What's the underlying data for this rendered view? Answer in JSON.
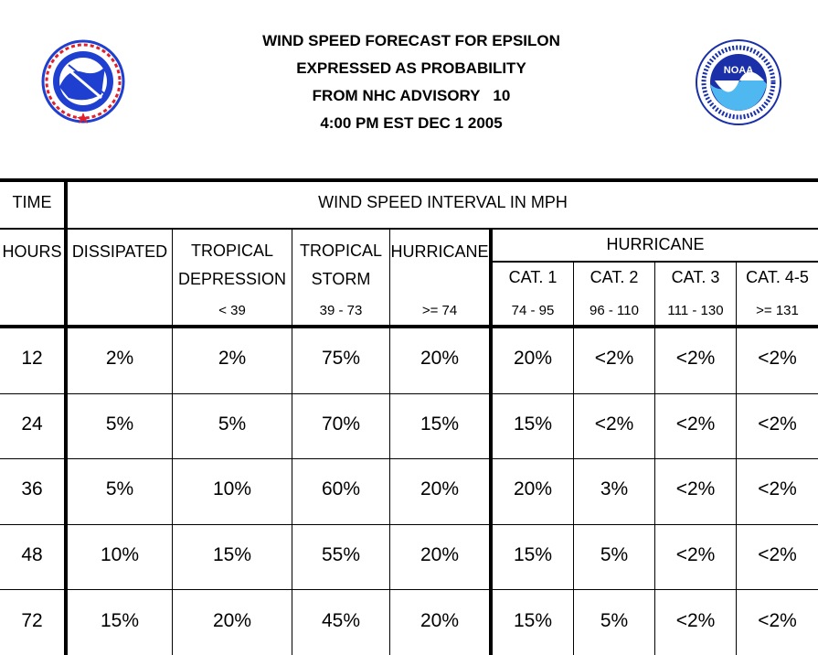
{
  "header": {
    "title_lines": [
      "WIND SPEED FORECAST FOR EPSILON",
      "EXPRESSED AS PROBABILITY",
      "FROM NHC ADVISORY   10",
      "4:00 PM EST DEC 1 2005"
    ],
    "left_logo": "national-weather-service-logo",
    "right_logo": "noaa-logo"
  },
  "table": {
    "time_label": "TIME",
    "interval_title": "WIND SPEED INTERVAL IN MPH",
    "hours_label": "HOURS",
    "columns": {
      "dissipated": {
        "label": "DISSIPATED",
        "range": ""
      },
      "td": {
        "label1": "TROPICAL",
        "label2": "DEPRESSION",
        "range": "< 39"
      },
      "ts": {
        "label1": "TROPICAL",
        "label2": "STORM",
        "range": "39 - 73"
      },
      "hu": {
        "label": "HURRICANE",
        "range": ">= 74"
      },
      "hurricane_group": "HURRICANE",
      "cat1": {
        "label": "CAT. 1",
        "range": "74 - 95"
      },
      "cat2": {
        "label": "CAT. 2",
        "range": "96 - 110"
      },
      "cat3": {
        "label": "CAT. 3",
        "range": "111 - 130"
      },
      "cat45": {
        "label": "CAT. 4-5",
        "range": ">= 131"
      }
    },
    "rows": [
      {
        "hours": "12",
        "dissipated": "2%",
        "td": "2%",
        "ts": "75%",
        "hu": "20%",
        "cat1": "20%",
        "cat2": "<2%",
        "cat3": "<2%",
        "cat45": "<2%"
      },
      {
        "hours": "24",
        "dissipated": "5%",
        "td": "5%",
        "ts": "70%",
        "hu": "15%",
        "cat1": "15%",
        "cat2": "<2%",
        "cat3": "<2%",
        "cat45": "<2%"
      },
      {
        "hours": "36",
        "dissipated": "5%",
        "td": "10%",
        "ts": "60%",
        "hu": "20%",
        "cat1": "20%",
        "cat2": "3%",
        "cat3": "<2%",
        "cat45": "<2%"
      },
      {
        "hours": "48",
        "dissipated": "10%",
        "td": "15%",
        "ts": "55%",
        "hu": "20%",
        "cat1": "15%",
        "cat2": "5%",
        "cat3": "<2%",
        "cat45": "<2%"
      },
      {
        "hours": "72",
        "dissipated": "15%",
        "td": "20%",
        "ts": "45%",
        "hu": "20%",
        "cat1": "15%",
        "cat2": "5%",
        "cat3": "<2%",
        "cat45": "<2%"
      }
    ]
  },
  "colors": {
    "nws_blue": "#1e3fd0",
    "nws_red": "#e0202a",
    "noaa_blue": "#1a2fa8",
    "noaa_light": "#4fb8f0"
  }
}
